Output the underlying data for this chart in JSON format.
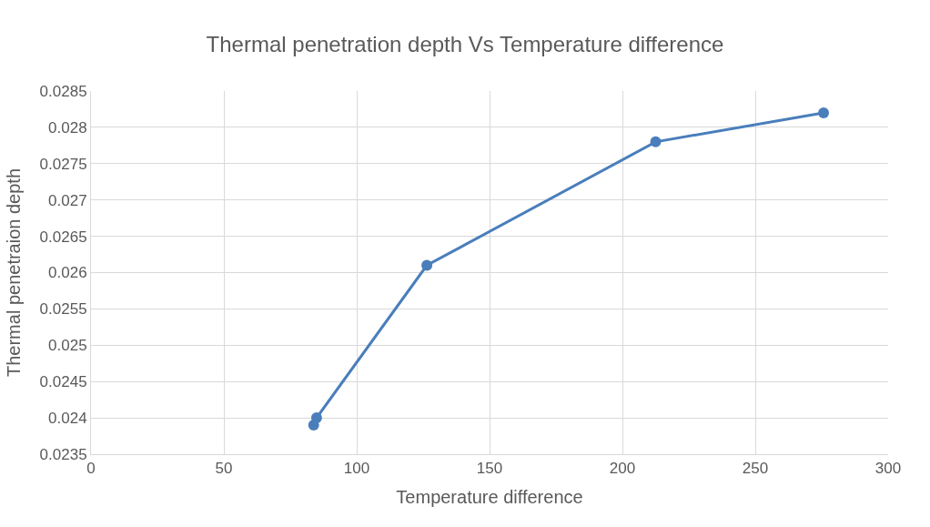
{
  "chart_data": {
    "type": "line",
    "title": "Thermal penetration depth Vs Temperature difference",
    "xlabel": "Temperature difference",
    "ylabel": "Thermal penetraion depth",
    "x": [
      83.8,
      84.9,
      126.4,
      212.5,
      275.7
    ],
    "series": [
      {
        "color": "#4a7ebb",
        "values": [
          0.0239,
          0.024,
          0.0261,
          0.0278,
          0.0282
        ]
      }
    ],
    "xlim": [
      0,
      300
    ],
    "xticks": [
      0,
      50,
      100,
      150,
      200,
      250,
      300
    ],
    "ylim": [
      0.0235,
      0.0285
    ],
    "yticks": [
      0.0235,
      0.024,
      0.0245,
      0.025,
      0.0255,
      0.026,
      0.0265,
      0.027,
      0.0275,
      0.028,
      0.0285
    ],
    "grid": true,
    "marker": "circle",
    "line_style": "solid"
  }
}
